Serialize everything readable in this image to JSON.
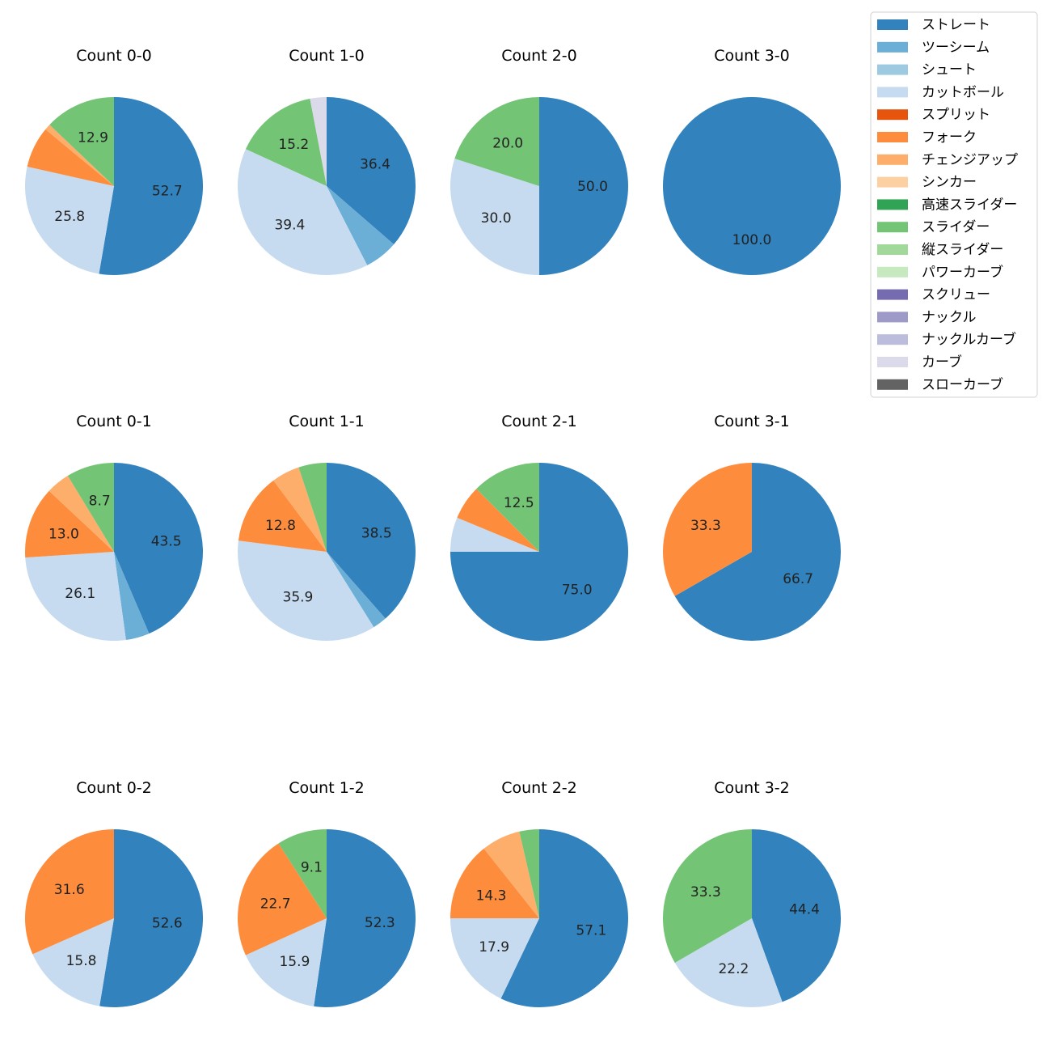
{
  "chart_data": {
    "type": "pie",
    "start_angle": 90,
    "direction": "clockwise",
    "label_threshold_percent": 8,
    "legend": {
      "placement": "top-right",
      "entries": [
        {
          "name": "ストレート",
          "color": "#3182bd"
        },
        {
          "name": "ツーシーム",
          "color": "#6baed6"
        },
        {
          "name": "シュート",
          "color": "#9ecae1"
        },
        {
          "name": "カットボール",
          "color": "#c6dbef"
        },
        {
          "name": "スプリット",
          "color": "#e6550d"
        },
        {
          "name": "フォーク",
          "color": "#fd8d3c"
        },
        {
          "name": "チェンジアップ",
          "color": "#fdae6b"
        },
        {
          "name": "シンカー",
          "color": "#fdd0a2"
        },
        {
          "name": "高速スライダー",
          "color": "#31a354"
        },
        {
          "name": "スライダー",
          "color": "#74c476"
        },
        {
          "name": "縦スライダー",
          "color": "#a1d99b"
        },
        {
          "name": "パワーカーブ",
          "color": "#c7e9c0"
        },
        {
          "name": "スクリュー",
          "color": "#756bb1"
        },
        {
          "name": "ナックル",
          "color": "#9e9ac8"
        },
        {
          "name": "ナックルカーブ",
          "color": "#bcbddc"
        },
        {
          "name": "カーブ",
          "color": "#dadaeb"
        },
        {
          "name": "スローカーブ",
          "color": "#636363"
        }
      ]
    },
    "pies": [
      {
        "title": "Count 0-0",
        "slices": [
          {
            "name": "ストレート",
            "value": 52.7
          },
          {
            "name": "カットボール",
            "value": 25.8
          },
          {
            "name": "フォーク",
            "value": 7.5
          },
          {
            "name": "チェンジアップ",
            "value": 1.1
          },
          {
            "name": "スライダー",
            "value": 12.9
          }
        ]
      },
      {
        "title": "Count 1-0",
        "slices": [
          {
            "name": "ストレート",
            "value": 36.4
          },
          {
            "name": "ツーシーム",
            "value": 6.1
          },
          {
            "name": "カットボール",
            "value": 39.4
          },
          {
            "name": "スライダー",
            "value": 15.2
          },
          {
            "name": "カーブ",
            "value": 3.0
          }
        ]
      },
      {
        "title": "Count 2-0",
        "slices": [
          {
            "name": "ストレート",
            "value": 50.0
          },
          {
            "name": "カットボール",
            "value": 30.0
          },
          {
            "name": "スライダー",
            "value": 20.0
          }
        ]
      },
      {
        "title": "Count 3-0",
        "slices": [
          {
            "name": "ストレート",
            "value": 100.0
          }
        ]
      },
      {
        "title": "Count 0-1",
        "slices": [
          {
            "name": "ストレート",
            "value": 43.5
          },
          {
            "name": "ツーシーム",
            "value": 4.3
          },
          {
            "name": "カットボール",
            "value": 26.1
          },
          {
            "name": "フォーク",
            "value": 13.0
          },
          {
            "name": "チェンジアップ",
            "value": 4.3
          },
          {
            "name": "スライダー",
            "value": 8.7
          }
        ]
      },
      {
        "title": "Count 1-1",
        "slices": [
          {
            "name": "ストレート",
            "value": 38.5
          },
          {
            "name": "ツーシーム",
            "value": 2.6
          },
          {
            "name": "カットボール",
            "value": 35.9
          },
          {
            "name": "フォーク",
            "value": 12.8
          },
          {
            "name": "チェンジアップ",
            "value": 5.1
          },
          {
            "name": "スライダー",
            "value": 5.1
          }
        ]
      },
      {
        "title": "Count 2-1",
        "slices": [
          {
            "name": "ストレート",
            "value": 75.0
          },
          {
            "name": "カットボール",
            "value": 6.25
          },
          {
            "name": "フォーク",
            "value": 6.25
          },
          {
            "name": "スライダー",
            "value": 12.5
          }
        ]
      },
      {
        "title": "Count 3-1",
        "slices": [
          {
            "name": "ストレート",
            "value": 66.7
          },
          {
            "name": "フォーク",
            "value": 33.3
          }
        ]
      },
      {
        "title": "Count 0-2",
        "slices": [
          {
            "name": "ストレート",
            "value": 52.6
          },
          {
            "name": "カットボール",
            "value": 15.8
          },
          {
            "name": "フォーク",
            "value": 31.6
          }
        ]
      },
      {
        "title": "Count 1-2",
        "slices": [
          {
            "name": "ストレート",
            "value": 52.3
          },
          {
            "name": "カットボール",
            "value": 15.9
          },
          {
            "name": "フォーク",
            "value": 22.7
          },
          {
            "name": "スライダー",
            "value": 9.1
          }
        ]
      },
      {
        "title": "Count 2-2",
        "slices": [
          {
            "name": "ストレート",
            "value": 57.1
          },
          {
            "name": "カットボール",
            "value": 17.9
          },
          {
            "name": "フォーク",
            "value": 14.3
          },
          {
            "name": "チェンジアップ",
            "value": 7.1
          },
          {
            "name": "スライダー",
            "value": 3.6
          }
        ]
      },
      {
        "title": "Count 3-2",
        "slices": [
          {
            "name": "ストレート",
            "value": 44.4
          },
          {
            "name": "カットボール",
            "value": 22.2
          },
          {
            "name": "スライダー",
            "value": 33.3
          }
        ]
      }
    ]
  }
}
